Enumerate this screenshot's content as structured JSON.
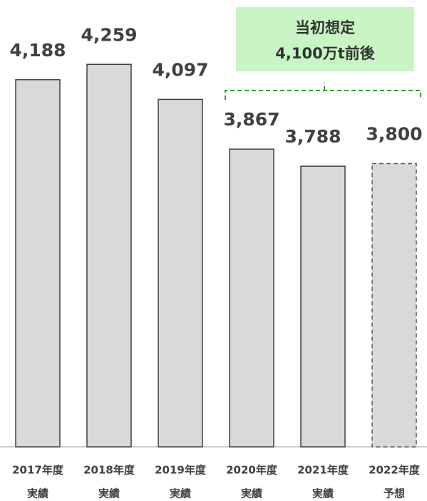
{
  "chart_data": {
    "type": "bar",
    "categories": [
      "2017年度",
      "2018年度",
      "2019年度",
      "2020年度",
      "2021年度",
      "2022年度"
    ],
    "statuses": [
      "実績",
      "実績",
      "実績",
      "実績",
      "実績",
      "予想"
    ],
    "values": [
      4188,
      4259,
      4097,
      3867,
      3788,
      3800
    ],
    "value_labels": [
      "4,188",
      "4,259",
      "4,097",
      "3,867",
      "3,788",
      "3,800"
    ],
    "dashed": [
      false,
      false,
      false,
      false,
      false,
      true
    ],
    "color": "#d9d9d9",
    "ylim": [
      2490,
      4550
    ],
    "annotation": [
      "当初想定",
      "4,100万t前後"
    ],
    "annotation_color": "#c9f5c4",
    "bracket_color": "#2e9e2e"
  }
}
